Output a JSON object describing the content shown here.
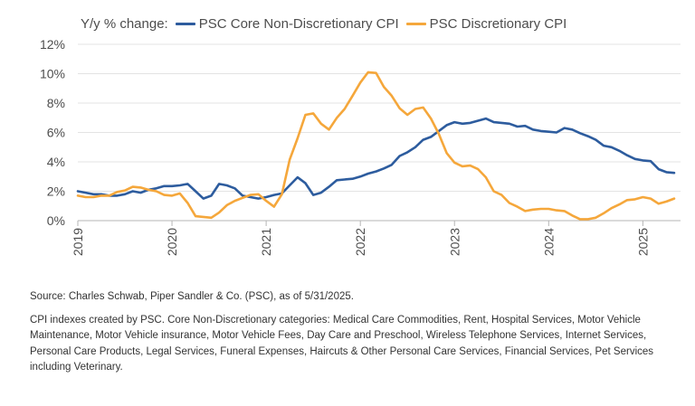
{
  "chart_data": {
    "type": "line",
    "title": "",
    "ylabel": "Y/y % change:",
    "xlabel": "",
    "ylim": [
      0,
      12
    ],
    "yticks": [
      0,
      2,
      4,
      6,
      8,
      10,
      12
    ],
    "ytick_labels": [
      "0%",
      "2%",
      "4%",
      "6%",
      "8%",
      "10%",
      "12%"
    ],
    "xlim": [
      2019.0,
      2025.4
    ],
    "xticks": [
      2019,
      2020,
      2021,
      2022,
      2023,
      2024,
      2025
    ],
    "xtick_labels": [
      "2019",
      "2020",
      "2021",
      "2022",
      "2023",
      "2024",
      "2025"
    ],
    "grid": true,
    "legend_position": "top-left",
    "series": [
      {
        "name": "PSC Core Non-Discretionary CPI",
        "color": "#2d5c9e",
        "x": [
          2019.0,
          2019.083,
          2019.167,
          2019.25,
          2019.333,
          2019.417,
          2019.5,
          2019.583,
          2019.667,
          2019.75,
          2019.833,
          2019.917,
          2020.0,
          2020.083,
          2020.167,
          2020.25,
          2020.333,
          2020.417,
          2020.5,
          2020.583,
          2020.667,
          2020.75,
          2020.833,
          2020.917,
          2021.0,
          2021.083,
          2021.167,
          2021.25,
          2021.333,
          2021.417,
          2021.5,
          2021.583,
          2021.667,
          2021.75,
          2021.833,
          2021.917,
          2022.0,
          2022.083,
          2022.167,
          2022.25,
          2022.333,
          2022.417,
          2022.5,
          2022.583,
          2022.667,
          2022.75,
          2022.833,
          2022.917,
          2023.0,
          2023.083,
          2023.167,
          2023.25,
          2023.333,
          2023.417,
          2023.5,
          2023.583,
          2023.667,
          2023.75,
          2023.833,
          2023.917,
          2024.0,
          2024.083,
          2024.167,
          2024.25,
          2024.333,
          2024.417,
          2024.5,
          2024.583,
          2024.667,
          2024.75,
          2024.833,
          2024.917,
          2025.0,
          2025.083,
          2025.167,
          2025.25,
          2025.333
        ],
        "values": [
          2.0,
          1.9,
          1.8,
          1.8,
          1.7,
          1.7,
          1.8,
          2.0,
          1.9,
          2.1,
          2.2,
          2.35,
          2.35,
          2.4,
          2.5,
          2.0,
          1.5,
          1.7,
          2.5,
          2.4,
          2.2,
          1.7,
          1.6,
          1.5,
          1.6,
          1.75,
          1.85,
          2.4,
          2.95,
          2.55,
          1.75,
          1.9,
          2.3,
          2.75,
          2.8,
          2.85,
          3.0,
          3.2,
          3.35,
          3.55,
          3.8,
          4.4,
          4.65,
          5.0,
          5.5,
          5.7,
          6.1,
          6.5,
          6.7,
          6.6,
          6.65,
          6.8,
          6.95,
          6.7,
          6.65,
          6.6,
          6.4,
          6.45,
          6.2,
          6.1,
          6.05,
          6.0,
          6.3,
          6.2,
          5.95,
          5.75,
          5.5,
          5.1,
          5.0,
          4.75,
          4.45,
          4.2,
          4.1,
          4.05,
          3.5,
          3.3,
          3.25
        ]
      },
      {
        "name": "PSC Discretionary CPI",
        "color": "#f5a73b",
        "x": [
          2019.0,
          2019.083,
          2019.167,
          2019.25,
          2019.333,
          2019.417,
          2019.5,
          2019.583,
          2019.667,
          2019.75,
          2019.833,
          2019.917,
          2020.0,
          2020.083,
          2020.167,
          2020.25,
          2020.333,
          2020.417,
          2020.5,
          2020.583,
          2020.667,
          2020.75,
          2020.833,
          2020.917,
          2021.0,
          2021.083,
          2021.167,
          2021.25,
          2021.333,
          2021.417,
          2021.5,
          2021.583,
          2021.667,
          2021.75,
          2021.833,
          2021.917,
          2022.0,
          2022.083,
          2022.167,
          2022.25,
          2022.333,
          2022.417,
          2022.5,
          2022.583,
          2022.667,
          2022.75,
          2022.833,
          2022.917,
          2023.0,
          2023.083,
          2023.167,
          2023.25,
          2023.333,
          2023.417,
          2023.5,
          2023.583,
          2023.667,
          2023.75,
          2023.833,
          2023.917,
          2024.0,
          2024.083,
          2024.167,
          2024.25,
          2024.333,
          2024.417,
          2024.5,
          2024.583,
          2024.667,
          2024.75,
          2024.833,
          2024.917,
          2025.0,
          2025.083,
          2025.167,
          2025.25,
          2025.333
        ],
        "values": [
          1.7,
          1.6,
          1.6,
          1.7,
          1.7,
          1.95,
          2.05,
          2.3,
          2.25,
          2.1,
          2.0,
          1.75,
          1.7,
          1.85,
          1.2,
          0.3,
          0.25,
          0.2,
          0.55,
          1.05,
          1.35,
          1.55,
          1.75,
          1.8,
          1.35,
          0.95,
          1.8,
          4.15,
          5.6,
          7.2,
          7.3,
          6.6,
          6.2,
          7.0,
          7.6,
          8.5,
          9.4,
          10.1,
          10.05,
          9.1,
          8.5,
          7.65,
          7.2,
          7.6,
          7.7,
          6.95,
          5.9,
          4.6,
          3.95,
          3.7,
          3.75,
          3.5,
          2.95,
          2.0,
          1.75,
          1.2,
          0.95,
          0.65,
          0.75,
          0.8,
          0.8,
          0.7,
          0.65,
          0.35,
          0.1,
          0.1,
          0.2,
          0.5,
          0.85,
          1.1,
          1.4,
          1.45,
          1.6,
          1.5,
          1.15,
          1.3,
          1.5
        ]
      }
    ]
  },
  "notes": {
    "source": "Source: Charles Schwab, Piper Sandler & Co. (PSC), as of 5/31/2025.",
    "description": "CPI indexes created by PSC. Core Non-Discretionary categories: Medical Care Commodities, Rent, Hospital Services, Motor Vehicle Maintenance, Motor Vehicle insurance, Motor Vehicle Fees, Day Care and Preschool, Wireless Telephone Services, Internet Services, Personal Care Products, Legal Services, Funeral Expenses, Haircuts & Other Personal Care Services, Financial Services, Pet Services including Veterinary."
  }
}
